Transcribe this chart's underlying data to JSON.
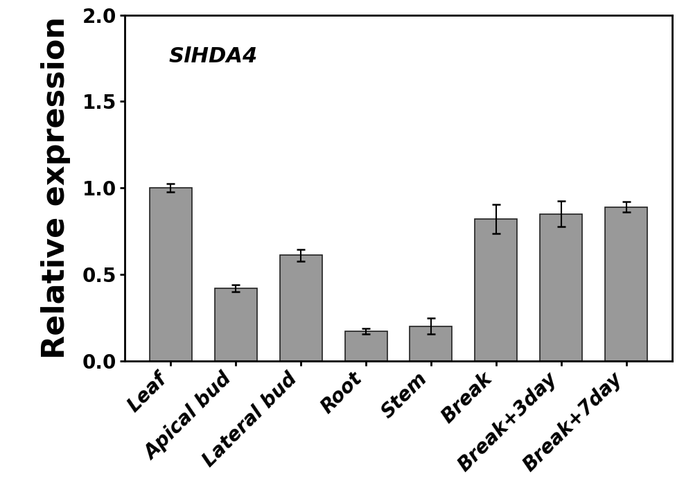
{
  "categories": [
    "Leaf",
    "Apical bud",
    "Lateral bud",
    "Root",
    "Stem",
    "Break",
    "Break+3day",
    "Break+7day"
  ],
  "values": [
    1.0,
    0.42,
    0.61,
    0.17,
    0.2,
    0.82,
    0.85,
    0.89
  ],
  "errors": [
    0.025,
    0.02,
    0.035,
    0.015,
    0.045,
    0.085,
    0.075,
    0.03
  ],
  "bar_color": "#999999",
  "bar_edgecolor": "#222222",
  "ylabel": "Relative expression",
  "ylim": [
    0.0,
    2.0
  ],
  "yticks": [
    0.0,
    0.5,
    1.0,
    1.5,
    2.0
  ],
  "ytick_labels": [
    "0.0",
    "0.5",
    "1.0",
    "1.5",
    "2.0"
  ],
  "annotation_text": "SlHDA4",
  "background_color": "#ffffff",
  "figure_width": 10.0,
  "figure_height": 7.23,
  "ylabel_fontsize": 32,
  "tick_fontsize": 20,
  "annotation_fontsize": 22,
  "bar_width": 0.65,
  "capsize": 4,
  "elinewidth": 1.5,
  "ecapthick": 1.8
}
